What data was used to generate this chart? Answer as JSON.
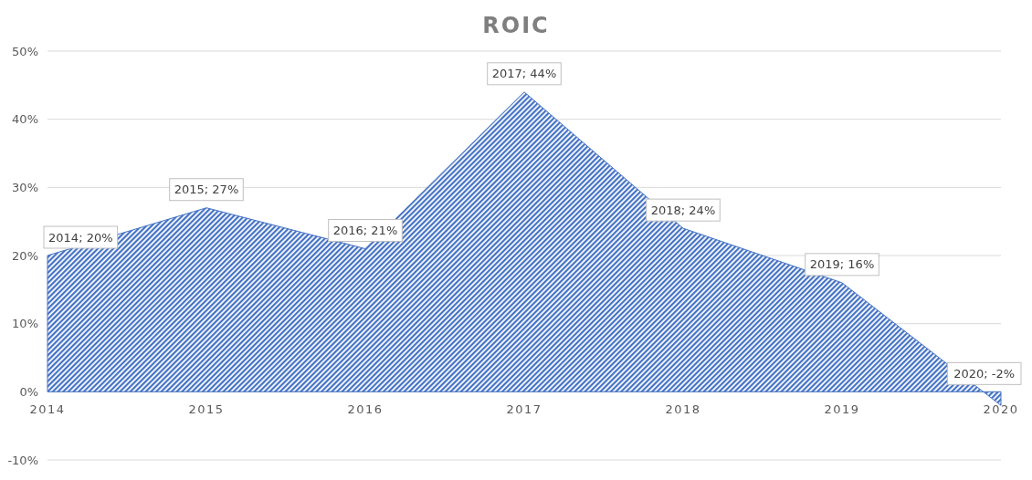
{
  "chart_data": {
    "type": "area",
    "title": "ROIC",
    "categories": [
      "2014",
      "2015",
      "2016",
      "2017",
      "2018",
      "2019",
      "2020"
    ],
    "values": [
      20,
      27,
      21,
      44,
      24,
      16,
      -2
    ],
    "color": "#4472c4",
    "value_labels": [
      "2014; 20%",
      "2015; 27%",
      "2016; 21%",
      "2017; 44%",
      "2018; 24%",
      "2019; 16%",
      "2020; -2%"
    ],
    "ylim": [
      -10,
      50
    ],
    "yticks": [
      {
        "value": -10,
        "label": "-10%"
      },
      {
        "value": 0,
        "label": "0%"
      },
      {
        "value": 10,
        "label": "10%"
      },
      {
        "value": 20,
        "label": "20%"
      },
      {
        "value": 30,
        "label": "30%"
      },
      {
        "value": 40,
        "label": "40%"
      },
      {
        "value": 50,
        "label": "50%"
      }
    ],
    "grid": "y"
  }
}
